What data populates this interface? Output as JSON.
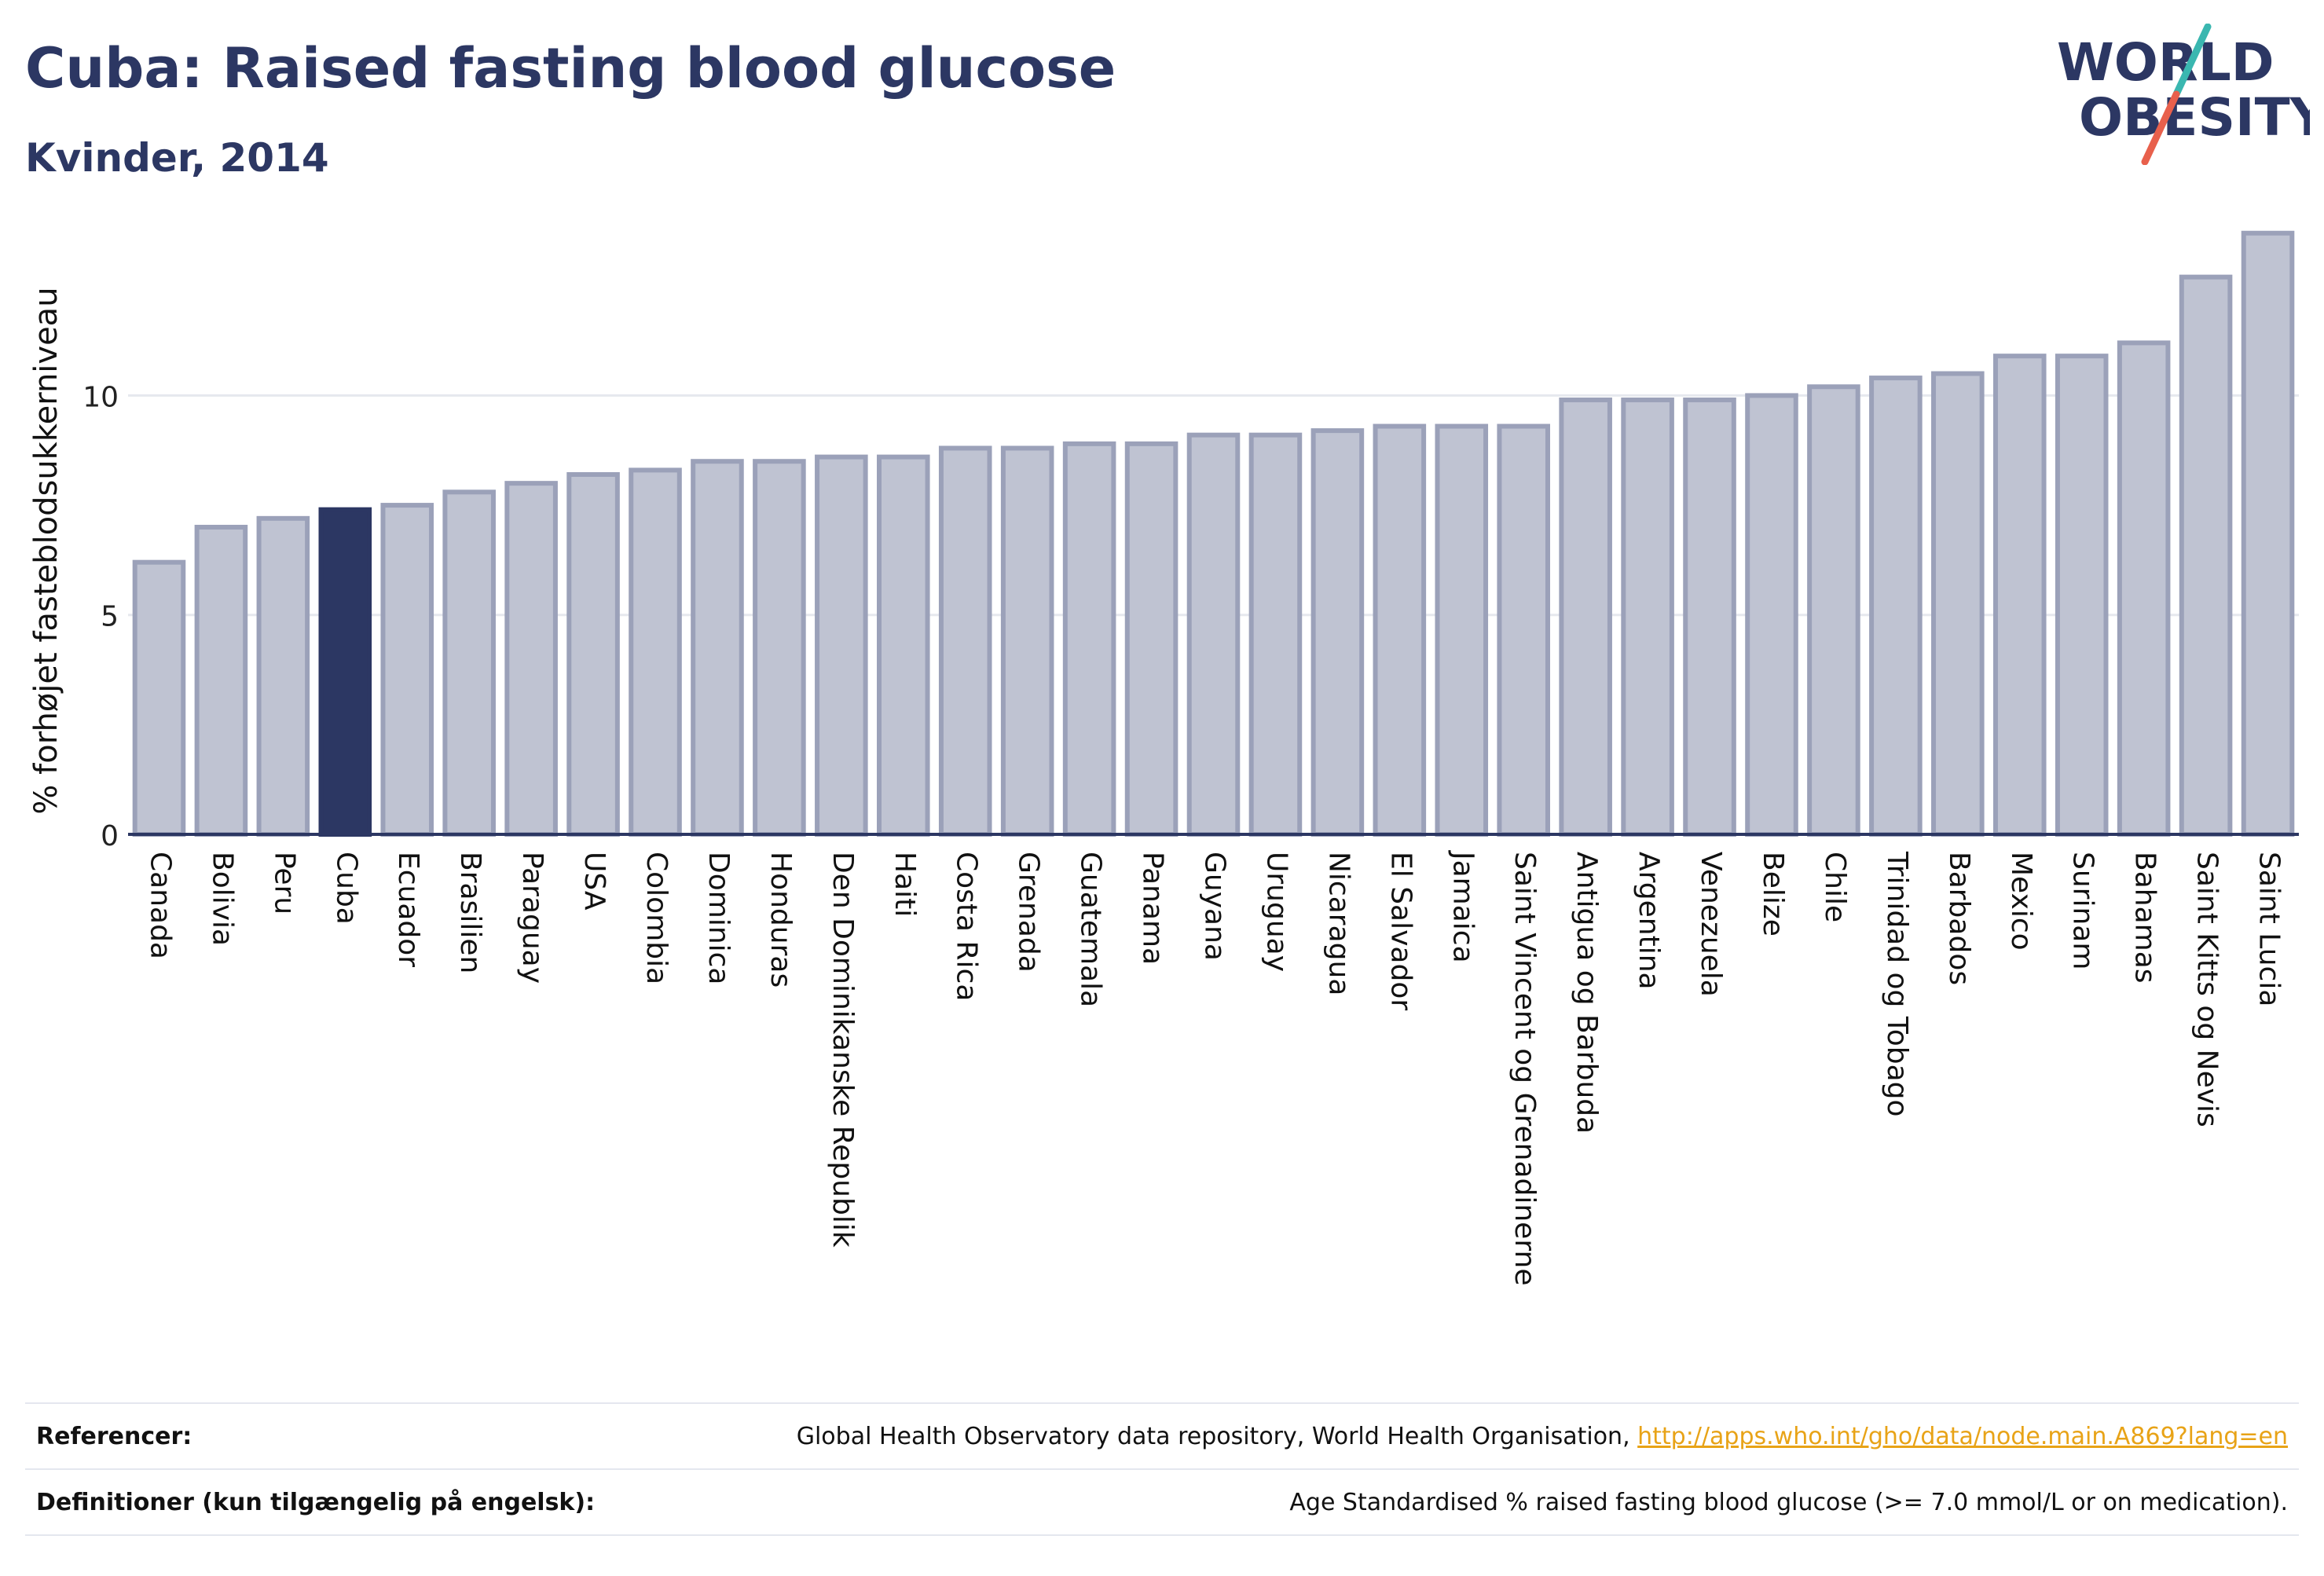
{
  "header": {
    "title": "Cuba: Raised fasting blood glucose",
    "subtitle": "Kvinder, 2014"
  },
  "logo": {
    "line1": "WORLD",
    "line2": "OBESITY",
    "text_color": "#2c3763",
    "slash_top_color": "#3ab7b0",
    "slash_bottom_color": "#e8604c"
  },
  "colors": {
    "bar_fill": "#bfc3d2",
    "bar_stroke": "#9ba1b9",
    "highlight_fill": "#2c3763",
    "grid": "#e6e8ee",
    "axis": "#2c3763"
  },
  "chart_data": {
    "type": "bar",
    "ylabel": "% forhøjet fasteblodsukkerniveau",
    "yticks": [
      0,
      5,
      10
    ],
    "ylim": [
      0,
      14
    ],
    "highlight": "Cuba",
    "categories": [
      "Canada",
      "Bolivia",
      "Peru",
      "Cuba",
      "Ecuador",
      "Brasilien",
      "Paraguay",
      "USA",
      "Colombia",
      "Dominica",
      "Honduras",
      "Den Dominikanske Republik",
      "Haiti",
      "Costa Rica",
      "Grenada",
      "Guatemala",
      "Panama",
      "Guyana",
      "Uruguay",
      "Nicaragua",
      "El Salvador",
      "Jamaica",
      "Saint Vincent og Grenadinerne",
      "Antigua og Barbuda",
      "Argentina",
      "Venezuela",
      "Belize",
      "Chile",
      "Trinidad og Tobago",
      "Barbados",
      "Mexico",
      "Surinam",
      "Bahamas",
      "Saint Kitts og Nevis",
      "Saint Lucia"
    ],
    "values": [
      6.2,
      7.0,
      7.2,
      7.4,
      7.5,
      7.8,
      8.0,
      8.2,
      8.3,
      8.5,
      8.5,
      8.6,
      8.6,
      8.8,
      8.8,
      8.9,
      8.9,
      9.1,
      9.1,
      9.2,
      9.3,
      9.3,
      9.3,
      9.9,
      9.9,
      9.9,
      10.0,
      10.2,
      10.4,
      10.5,
      10.9,
      10.9,
      11.2,
      12.7,
      13.7
    ]
  },
  "references": {
    "sources_label": "Referencer:",
    "sources_text": "Global Health Observatory data repository, World Health Organisation, ",
    "sources_link": "http://apps.who.int/gho/data/node.main.A869?lang=en",
    "definitions_label": "Definitioner (kun tilgængelig på engelsk):",
    "definitions_text": "Age Standardised % raised fasting blood glucose (>= 7.0 mmol/L or on medication)."
  }
}
